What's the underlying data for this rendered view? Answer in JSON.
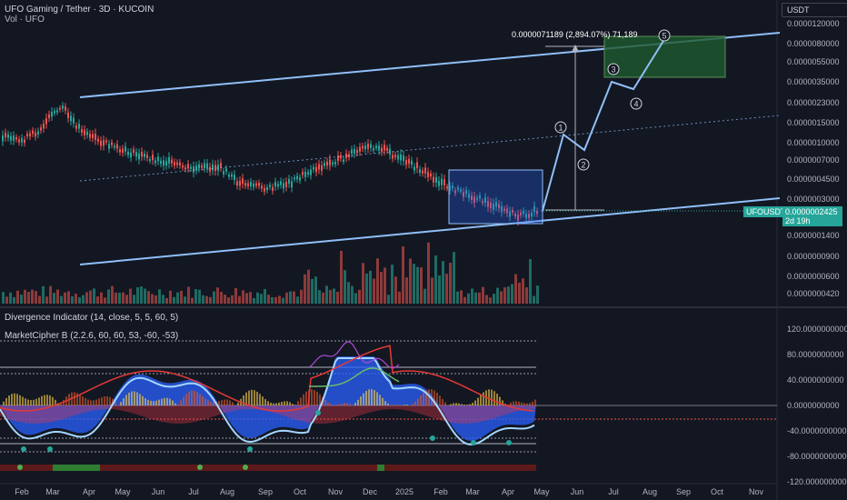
{
  "header": {
    "symbol_title": "UFO Gaming / Tether · 3D · KUCOIN",
    "volume_label": "Vol · UFO",
    "currency": "USDT"
  },
  "price_scale": {
    "labels": [
      "0.0000120000",
      "0.0000080000",
      "0.0000055000",
      "0.0000035000",
      "0.0000023000",
      "0.0000015000",
      "0.0000010000",
      "0.0000007000",
      "0.0000004500",
      "0.0000003000",
      "0.0000001400",
      "0.0000000900",
      "0.0000000600",
      "0.0000000420"
    ]
  },
  "last_price": {
    "ticker": "UFOUSDT",
    "value": "0.0000002425",
    "countdown": "2d 19h"
  },
  "measure_label": "0.0000071189 (2,894.07%) 71,189",
  "wave_labels": [
    "1",
    "2",
    "3",
    "4",
    "5"
  ],
  "indicators": {
    "divergence_label": "Divergence Indicator (14, close, 5, 5, 60, 5)",
    "marketcipher_label": "MarketCipher B (2.2.6, 60, 60, 53, -60, -53)",
    "scale_labels": [
      "120.0000000000",
      "80.0000000000",
      "40.0000000000",
      "0.0000000000",
      "-40.0000000000",
      "-80.0000000000",
      "-120.0000000000"
    ]
  },
  "time_axis": {
    "labels": [
      "Feb",
      "Mar",
      "Apr",
      "May",
      "Jun",
      "Jul",
      "Aug",
      "Sep",
      "Oct",
      "Nov",
      "Dec",
      "2025",
      "Feb",
      "Mar",
      "Apr",
      "May",
      "Jun",
      "Jul",
      "Aug",
      "Sep",
      "Oct",
      "Nov"
    ]
  },
  "colors": {
    "background": "#131722",
    "up": "#26a69a",
    "down": "#ef5350",
    "channel": "#90bff9",
    "target_box": "#1e5a2e",
    "consolidation_box": "#2962ff"
  },
  "chart_data": {
    "type": "candlestick",
    "title": "UFO Gaming / Tether · 3D · KUCOIN",
    "y_scale": "log",
    "price_close_approx": [
      {
        "x": "Feb",
        "y": 1.3e-06
      },
      {
        "x": "Mar",
        "y": 2.3e-06
      },
      {
        "x": "Apr",
        "y": 1.3e-06
      },
      {
        "x": "May",
        "y": 9.5e-07
      },
      {
        "x": "Jun",
        "y": 7e-07
      },
      {
        "x": "Jul",
        "y": 5.5e-07
      },
      {
        "x": "Aug",
        "y": 4.5e-07
      },
      {
        "x": "Sep",
        "y": 4e-07
      },
      {
        "x": "Oct",
        "y": 5.5e-07
      },
      {
        "x": "Nov",
        "y": 8e-07
      },
      {
        "x": "Dec",
        "y": 9e-07
      },
      {
        "x": "2025",
        "y": 6.5e-07
      },
      {
        "x": "Feb",
        "y": 4.2e-07
      },
      {
        "x": "Mar",
        "y": 2.8e-07
      },
      {
        "x": "Apr",
        "y": 2.2e-07
      },
      {
        "x": "May",
        "y": 2.425e-07
      }
    ],
    "last_price": 2.425e-07,
    "projection_waves": [
      "1",
      "2",
      "3",
      "4",
      "5"
    ],
    "measure_change_percent": 2894.07
  }
}
